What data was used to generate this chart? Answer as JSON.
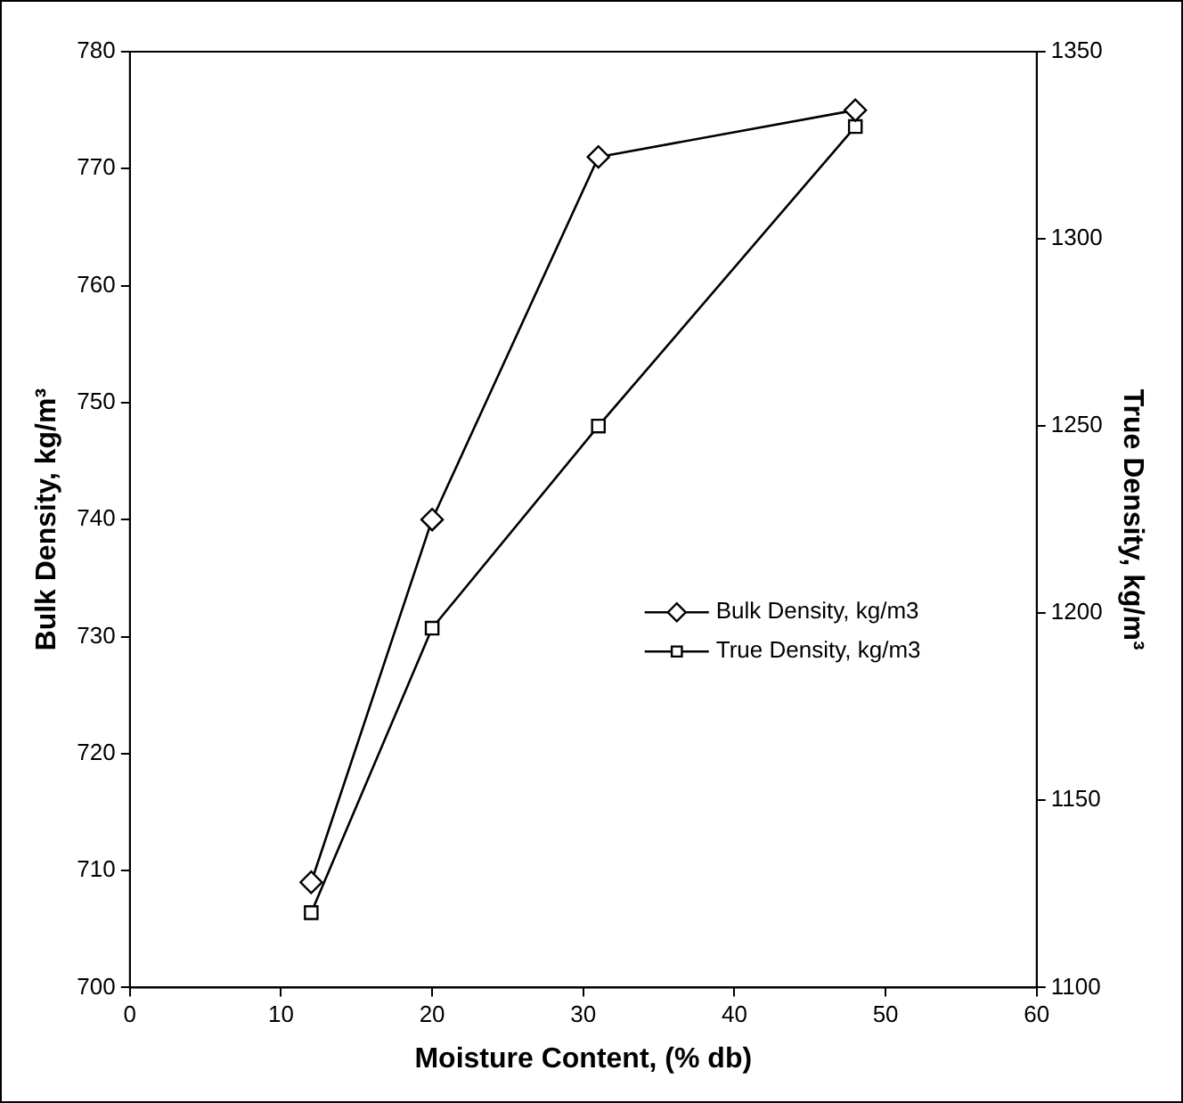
{
  "chart_data": {
    "type": "line",
    "xlabel": "Moisture Content, (% db)",
    "ylabel": "Bulk Density, kg/m³",
    "y2label": "True Density, kg/m³",
    "x": [
      12,
      20,
      31,
      48
    ],
    "series": [
      {
        "name": "Bulk Density, kg/m3",
        "color": "#000000",
        "marker": "diamond",
        "values": [
          709,
          740,
          771,
          775
        ]
      },
      {
        "name": "True Density, kg/m3",
        "color": "#000000",
        "marker": "square",
        "axis": "y2",
        "values": [
          1120,
          1196,
          1250,
          1330
        ]
      }
    ],
    "xlim": [
      0,
      60
    ],
    "xticks": [
      0,
      10,
      20,
      30,
      40,
      50,
      60
    ],
    "ylim": [
      700,
      780
    ],
    "yticks": [
      700,
      710,
      720,
      730,
      740,
      750,
      760,
      770,
      780
    ],
    "y2lim": [
      1100,
      1350
    ],
    "y2ticks": [
      1100,
      1150,
      1200,
      1250,
      1300,
      1350
    ],
    "grid": false,
    "legend": "right",
    "line_style": "solid"
  }
}
